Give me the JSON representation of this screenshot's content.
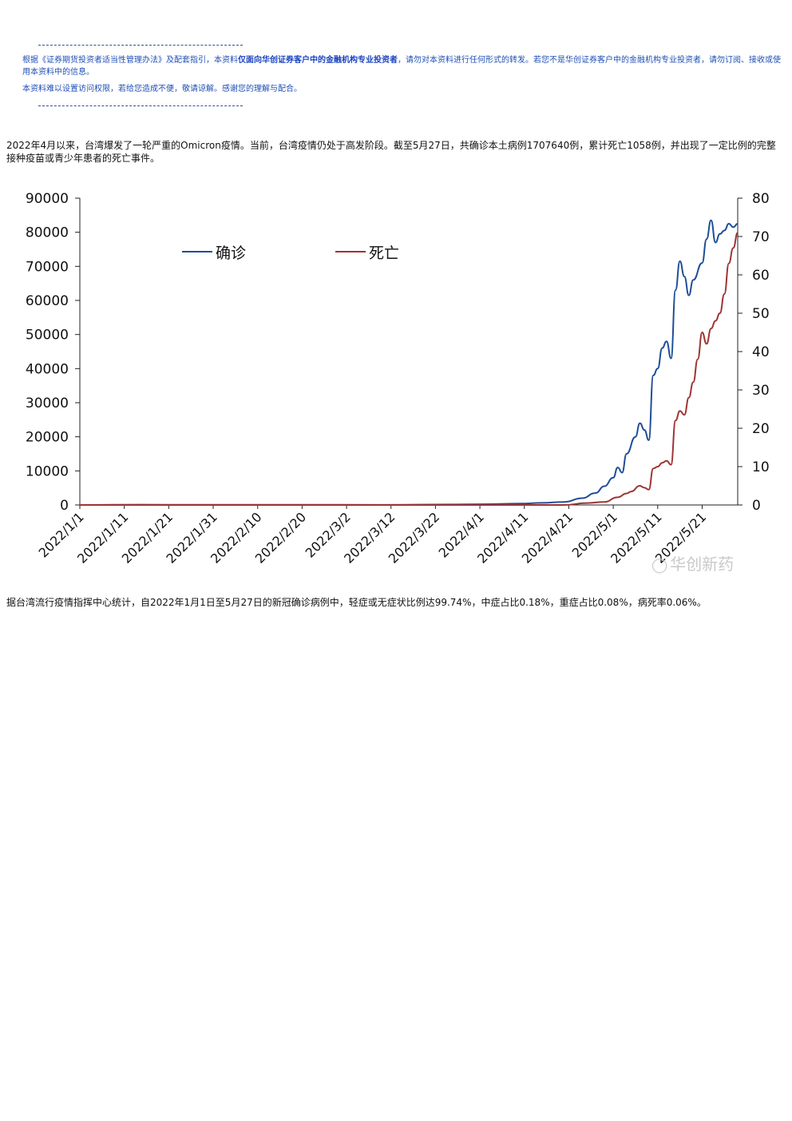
{
  "header": {
    "disclaimer_line1_pre": "根据《证券期货投资者适当性管理办法》及配套指引，本资料",
    "disclaimer_line1_bold": "仅面向华创证券客户中的金融机构专业投资者",
    "disclaimer_line1_post": "，请勿对本资料进行任何形式的转发。若您不是华创证券客户中的金融机构专业投资者，请勿订阅、接收或使用本资料中的信息。",
    "disclaimer_line2": "本资料难以设置访问权限，若给您造成不便，敬请谅解。感谢您的理解与配合。"
  },
  "body": {
    "intro_text": "2022年4月以来，台湾爆发了一轮严重的Omicron疫情。当前，台湾疫情仍处于高发阶段。截至5月27日，共确诊本土病例1707640例，累计死亡1058例，并出现了一定比例的完整接种疫苗或青少年患者的死亡事件。",
    "stats_text": "据台湾流行疫情指挥中心统计，自2022年1月1日至5月27日的新冠确诊病例中，轻症或无症状比例达99.74%，中症占比0.18%，重症占比0.08%，病死率0.06%。"
  },
  "watermark": {
    "text": "华创新药",
    "icon": "wechat-icon"
  },
  "chart_data": {
    "type": "line",
    "x_tick_labels": [
      "2022/1/1",
      "2022/1/11",
      "2022/1/21",
      "2022/1/31",
      "2022/2/10",
      "2022/2/20",
      "2022/3/2",
      "2022/3/12",
      "2022/3/22",
      "2022/4/1",
      "2022/4/11",
      "2022/4/21",
      "2022/5/1",
      "2022/5/11",
      "2022/5/21"
    ],
    "ylim_left": [
      0,
      90000
    ],
    "yticks_left": [
      "0",
      "10000",
      "20000",
      "30000",
      "40000",
      "50000",
      "60000",
      "70000",
      "80000",
      "90000"
    ],
    "ylim_right": [
      0,
      80
    ],
    "yticks_right": [
      "0",
      "10",
      "20",
      "30",
      "40",
      "50",
      "60",
      "70",
      "80"
    ],
    "legend": {
      "placement": "top-center"
    },
    "grid": false,
    "series": [
      {
        "name": "确诊",
        "axis": "left",
        "color": "#1f4e96",
        "points": [
          [
            "2022/1/1",
            0
          ],
          [
            "2022/1/15",
            100
          ],
          [
            "2022/1/25",
            50
          ],
          [
            "2022/2/20",
            80
          ],
          [
            "2022/3/10",
            30
          ],
          [
            "2022/3/25",
            150
          ],
          [
            "2022/4/1",
            200
          ],
          [
            "2022/4/10",
            400
          ],
          [
            "2022/4/15",
            600
          ],
          [
            "2022/4/20",
            900
          ],
          [
            "2022/4/24",
            2000
          ],
          [
            "2022/4/27",
            3500
          ],
          [
            "2022/4/29",
            5500
          ],
          [
            "2022/5/1",
            8000
          ],
          [
            "2022/5/2",
            11000
          ],
          [
            "2022/5/3",
            9500
          ],
          [
            "2022/5/4",
            15000
          ],
          [
            "2022/5/6",
            20000
          ],
          [
            "2022/5/7",
            24000
          ],
          [
            "2022/5/8",
            22000
          ],
          [
            "2022/5/9",
            19000
          ],
          [
            "2022/5/10",
            38000
          ],
          [
            "2022/5/11",
            40000
          ],
          [
            "2022/5/12",
            46000
          ],
          [
            "2022/5/13",
            48000
          ],
          [
            "2022/5/14",
            43000
          ],
          [
            "2022/5/15",
            63000
          ],
          [
            "2022/5/16",
            71500
          ],
          [
            "2022/5/17",
            67000
          ],
          [
            "2022/5/18",
            61500
          ],
          [
            "2022/5/19",
            66000
          ],
          [
            "2022/5/21",
            71000
          ],
          [
            "2022/5/22",
            78000
          ],
          [
            "2022/5/23",
            83500
          ],
          [
            "2022/5/24",
            77000
          ],
          [
            "2022/5/25",
            79500
          ],
          [
            "2022/5/26",
            80500
          ],
          [
            "2022/5/27",
            82500
          ],
          [
            "2022/5/28",
            81500
          ],
          [
            "2022/5/29",
            82500
          ]
        ]
      },
      {
        "name": "死亡",
        "axis": "right",
        "color": "#9e3434",
        "points": [
          [
            "2022/1/1",
            0
          ],
          [
            "2022/4/20",
            0
          ],
          [
            "2022/4/25",
            0.5
          ],
          [
            "2022/4/29",
            0.8
          ],
          [
            "2022/5/2",
            2
          ],
          [
            "2022/5/4",
            3
          ],
          [
            "2022/5/5",
            3.5
          ],
          [
            "2022/5/7",
            5
          ],
          [
            "2022/5/8",
            4.5
          ],
          [
            "2022/5/9",
            4
          ],
          [
            "2022/5/10",
            9.5
          ],
          [
            "2022/5/11",
            10
          ],
          [
            "2022/5/12",
            11
          ],
          [
            "2022/5/13",
            11.5
          ],
          [
            "2022/5/14",
            10.5
          ],
          [
            "2022/5/15",
            22
          ],
          [
            "2022/5/16",
            24.5
          ],
          [
            "2022/5/17",
            23.5
          ],
          [
            "2022/5/18",
            28
          ],
          [
            "2022/5/19",
            32
          ],
          [
            "2022/5/20",
            38
          ],
          [
            "2022/5/21",
            45
          ],
          [
            "2022/5/22",
            42
          ],
          [
            "2022/5/23",
            46
          ],
          [
            "2022/5/24",
            48
          ],
          [
            "2022/5/25",
            50
          ],
          [
            "2022/5/26",
            55
          ],
          [
            "2022/5/27",
            63
          ],
          [
            "2022/5/28",
            67
          ],
          [
            "2022/5/29",
            71
          ]
        ]
      }
    ]
  }
}
